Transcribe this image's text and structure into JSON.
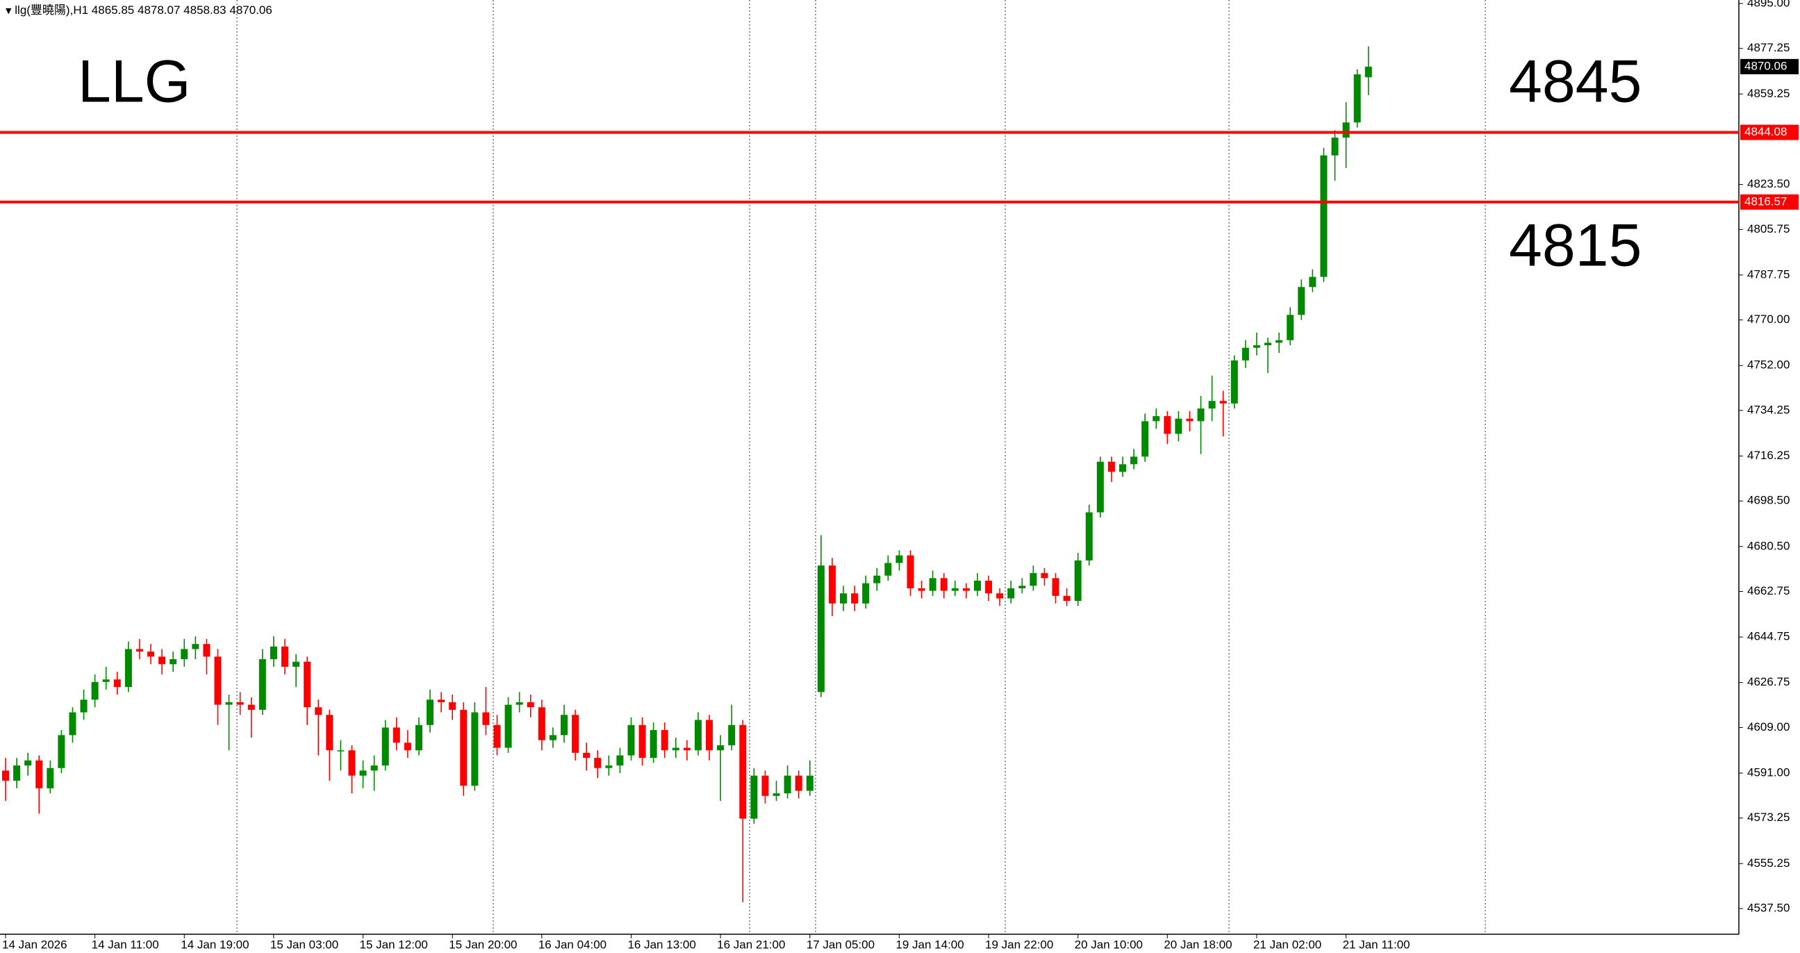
{
  "chart_data": {
    "type": "candlestick",
    "header": "llg(豐曉陽),H1",
    "ylim": [
      4527.35,
      4896.37
    ],
    "yticks": [
      {
        "value": 4895,
        "label": "4895.00"
      },
      4877.25,
      4859.25,
      {
        "value": 4823.5,
        "label": "4823.50"
      },
      4805.75,
      4787.75,
      {
        "value": 4770,
        "label": "4770.00"
      },
      {
        "value": 4752,
        "label": "4752.00"
      },
      4734.25,
      4716.25,
      {
        "value": 4698.5,
        "label": "4698.50"
      },
      {
        "value": 4680.5,
        "label": "4680.50"
      },
      4662.75,
      4644.75,
      4626.75,
      {
        "value": 4609,
        "label": "4609.00"
      },
      {
        "value": 4591,
        "label": "4591.00"
      },
      4573.25,
      4555.25,
      {
        "value": 4537.5,
        "label": "4537.50"
      }
    ],
    "up_color": "#008a00",
    "down_color": "#ff0000",
    "hlines": [
      {
        "value": 4844.08,
        "color": "#ff0000"
      },
      {
        "value": 4816.57,
        "color": "#ff0000"
      }
    ],
    "annotations": [
      {
        "text": "LLG"
      },
      {
        "text": "4845"
      },
      {
        "text": "4815"
      }
    ],
    "categories": [
      "14 Jan 2026",
      null,
      null,
      null,
      null,
      null,
      null,
      null,
      "14 Jan 11:00",
      null,
      null,
      null,
      null,
      null,
      null,
      null,
      "14 Jan 19:00",
      null,
      null,
      null,
      null,
      null,
      null,
      null,
      "15 Jan 03:00",
      null,
      null,
      null,
      null,
      null,
      null,
      null,
      "15 Jan 12:00",
      null,
      null,
      null,
      null,
      null,
      null,
      null,
      "15 Jan 20:00",
      null,
      null,
      null,
      null,
      null,
      null,
      null,
      "16 Jan 04:00",
      null,
      null,
      null,
      null,
      null,
      null,
      null,
      "16 Jan 13:00",
      null,
      null,
      null,
      null,
      null,
      null,
      null,
      "16 Jan 21:00",
      null,
      null,
      null,
      null,
      null,
      null,
      null,
      "17 Jan 05:00",
      null,
      null,
      null,
      null,
      null,
      null,
      null,
      "19 Jan 14:00",
      null,
      null,
      null,
      null,
      null,
      null,
      null,
      "19 Jan 22:00",
      null,
      null,
      null,
      null,
      null,
      null,
      null,
      "20 Jan 10:00",
      null,
      null,
      null,
      null,
      null,
      null,
      null,
      "20 Jan 18:00",
      null,
      null,
      null,
      null,
      null,
      null,
      null,
      "21 Jan 02:00",
      null,
      null,
      null,
      null,
      null,
      null,
      null,
      "21 Jan 11:00",
      null,
      null
    ],
    "ohlc": [
      [
        4592,
        4597,
        4580,
        4588
      ],
      [
        4588,
        4597,
        4585,
        4594
      ],
      [
        4594,
        4599,
        4590,
        4596
      ],
      [
        4596,
        4598,
        4575,
        4585
      ],
      [
        4585,
        4596,
        4583,
        4593
      ],
      [
        4593,
        4608,
        4591,
        4606
      ],
      [
        4606,
        4617,
        4603,
        4615
      ],
      [
        4615,
        4624,
        4612,
        4620
      ],
      [
        4620,
        4630,
        4617,
        4627
      ],
      [
        4627,
        4633,
        4624,
        4628
      ],
      [
        4628,
        4631,
        4622,
        4625
      ],
      [
        4625,
        4643,
        4623,
        4640
      ],
      [
        4640,
        4644,
        4636,
        4639
      ],
      [
        4639,
        4642,
        4634,
        4637
      ],
      [
        4637,
        4640,
        4630,
        4634
      ],
      [
        4634,
        4639,
        4631,
        4636
      ],
      [
        4636,
        4644,
        4633,
        4640
      ],
      [
        4640,
        4645,
        4636,
        4642
      ],
      [
        4642,
        4644,
        4630,
        4637
      ],
      [
        4637,
        4640,
        4610,
        4618
      ],
      [
        4618,
        4622,
        4600,
        4619
      ],
      [
        4619,
        4623,
        4614,
        4618
      ],
      [
        4618,
        4621,
        4605,
        4616
      ],
      [
        4616,
        4640,
        4614,
        4636
      ],
      [
        4636,
        4645,
        4633,
        4641
      ],
      [
        4641,
        4644,
        4630,
        4633
      ],
      [
        4633,
        4638,
        4625,
        4635
      ],
      [
        4635,
        4637,
        4610,
        4617
      ],
      [
        4617,
        4620,
        4598,
        4614
      ],
      [
        4614,
        4616,
        4588,
        4600
      ],
      [
        4600,
        4604,
        4592,
        4600
      ],
      [
        4600,
        4602,
        4583,
        4590
      ],
      [
        4590,
        4596,
        4585,
        4592
      ],
      [
        4592,
        4598,
        4584,
        4594
      ],
      [
        4594,
        4612,
        4592,
        4609
      ],
      [
        4609,
        4613,
        4600,
        4603
      ],
      [
        4603,
        4608,
        4597,
        4600
      ],
      [
        4600,
        4613,
        4598,
        4610
      ],
      [
        4610,
        4624,
        4607,
        4620
      ],
      [
        4620,
        4623,
        4615,
        4619
      ],
      [
        4619,
        4622,
        4612,
        4616
      ],
      [
        4616,
        4619,
        4582,
        4586
      ],
      [
        4586,
        4619,
        4584,
        4615
      ],
      [
        4615,
        4625,
        4606,
        4610
      ],
      [
        4610,
        4614,
        4598,
        4601
      ],
      [
        4601,
        4621,
        4599,
        4618
      ],
      [
        4618,
        4623,
        4615,
        4619
      ],
      [
        4619,
        4622,
        4613,
        4617
      ],
      [
        4617,
        4620,
        4600,
        4604
      ],
      [
        4604,
        4609,
        4601,
        4606
      ],
      [
        4606,
        4618,
        4603,
        4614
      ],
      [
        4614,
        4616,
        4596,
        4599
      ],
      [
        4599,
        4603,
        4592,
        4597
      ],
      [
        4597,
        4600,
        4589,
        4593
      ],
      [
        4593,
        4598,
        4590,
        4594
      ],
      [
        4594,
        4601,
        4591,
        4598
      ],
      [
        4598,
        4613,
        4596,
        4610
      ],
      [
        4610,
        4613,
        4594,
        4597
      ],
      [
        4597,
        4611,
        4595,
        4608
      ],
      [
        4608,
        4611,
        4597,
        4600
      ],
      [
        4600,
        4605,
        4597,
        4601
      ],
      [
        4601,
        4604,
        4596,
        4600
      ],
      [
        4600,
        4615,
        4598,
        4612
      ],
      [
        4612,
        4614,
        4596,
        4600
      ],
      [
        4600,
        4606,
        4580,
        4602
      ],
      [
        4602,
        4618,
        4600,
        4610
      ],
      [
        4610,
        4612,
        4540,
        4573
      ],
      [
        4573,
        4593,
        4571,
        4590
      ],
      [
        4590,
        4592,
        4579,
        4582
      ],
      [
        4582,
        4588,
        4580,
        4583
      ],
      [
        4583,
        4594,
        4581,
        4590
      ],
      [
        4590,
        4592,
        4581,
        4584
      ],
      [
        4584,
        4596,
        4582,
        4590
      ],
      [
        4623,
        4685,
        4621,
        4673
      ],
      [
        4673,
        4676,
        4653,
        4658
      ],
      [
        4658,
        4665,
        4655,
        4662
      ],
      [
        4662,
        4665,
        4655,
        4658
      ],
      [
        4658,
        4669,
        4656,
        4666
      ],
      [
        4666,
        4672,
        4663,
        4669
      ],
      [
        4669,
        4677,
        4667,
        4674
      ],
      [
        4674,
        4679,
        4671,
        4677
      ],
      [
        4677,
        4679,
        4661,
        4664
      ],
      [
        4664,
        4667,
        4660,
        4663
      ],
      [
        4663,
        4671,
        4661,
        4668
      ],
      [
        4668,
        4670,
        4660,
        4663
      ],
      [
        4663,
        4667,
        4661,
        4664
      ],
      [
        4664,
        4666,
        4660,
        4663
      ],
      [
        4663,
        4670,
        4661,
        4667
      ],
      [
        4667,
        4669,
        4659,
        4662
      ],
      [
        4662,
        4664,
        4657,
        4660
      ],
      [
        4660,
        4667,
        4658,
        4664
      ],
      [
        4664,
        4668,
        4662,
        4665
      ],
      [
        4665,
        4673,
        4663,
        4670
      ],
      [
        4670,
        4672,
        4665,
        4668
      ],
      [
        4668,
        4670,
        4658,
        4661
      ],
      [
        4661,
        4664,
        4657,
        4659
      ],
      [
        4659,
        4678,
        4657,
        4675
      ],
      [
        4675,
        4697,
        4673,
        4694
      ],
      [
        4694,
        4716,
        4692,
        4714
      ],
      [
        4714,
        4716,
        4706,
        4710
      ],
      [
        4710,
        4716,
        4708,
        4713
      ],
      [
        4713,
        4719,
        4711,
        4716
      ],
      [
        4716,
        4733,
        4714,
        4730
      ],
      [
        4730,
        4735,
        4727,
        4732
      ],
      [
        4732,
        4734,
        4721,
        4725
      ],
      [
        4725,
        4734,
        4722,
        4731
      ],
      [
        4731,
        4734,
        4726,
        4730
      ],
      [
        4730,
        4740,
        4717,
        4735
      ],
      [
        4735,
        4748,
        4730,
        4738
      ],
      [
        4738,
        4742,
        4724,
        4737
      ],
      [
        4737,
        4756,
        4735,
        4754
      ],
      [
        4754,
        4762,
        4751,
        4759
      ],
      [
        4759,
        4765,
        4756,
        4760
      ],
      [
        4760,
        4763,
        4749,
        4761
      ],
      [
        4761,
        4765,
        4757,
        4762
      ],
      [
        4762,
        4775,
        4760,
        4772
      ],
      [
        4772,
        4786,
        4770,
        4783
      ],
      [
        4783,
        4790,
        4781,
        4787
      ],
      [
        4787,
        4838,
        4785,
        4835
      ],
      [
        4835,
        4845,
        4825,
        4842
      ],
      [
        4842,
        4856,
        4830,
        4848
      ],
      [
        4848,
        4869,
        4846,
        4867
      ],
      [
        4865.85,
        4878.07,
        4858.83,
        4870.06
      ]
    ]
  }
}
